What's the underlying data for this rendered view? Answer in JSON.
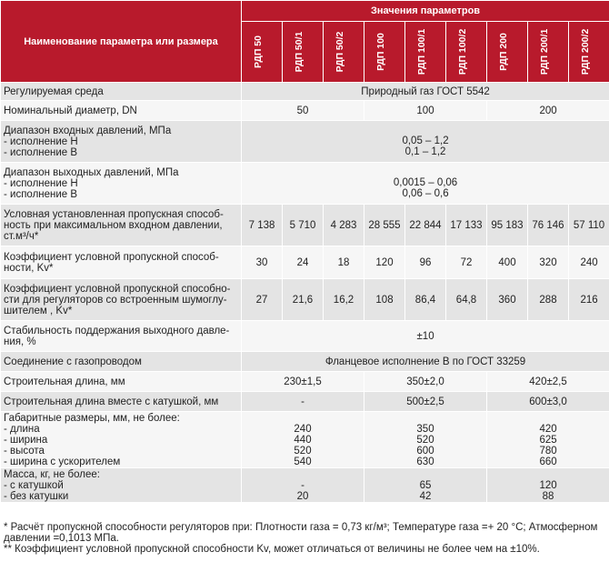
{
  "header": {
    "name_column": "Наименование параметра или размера",
    "values_group": "Значения параметров",
    "models": [
      "РДП 50",
      "РДП 50/1",
      "РДП 50/2",
      "РДП 100",
      "РДП 100/1",
      "РДП 100/2",
      "РДП 200",
      "РДП 200/1",
      "РДП 200/2"
    ]
  },
  "rows": {
    "medium": {
      "label": "Регулируемая среда",
      "value": "Природный газ ГОСТ 5542"
    },
    "dn": {
      "label": "Номинальный диаметр, DN",
      "values": [
        "50",
        "100",
        "200"
      ]
    },
    "inlet": {
      "label": [
        "Диапазон входных давлений, МПа",
        "- исполнение Н",
        "- исполнение В"
      ],
      "values": [
        "0,05 – 1,2",
        "0,1 – 1,2"
      ]
    },
    "outlet": {
      "label": [
        "Диапазон выходных давлений, МПа",
        "- исполнение Н",
        "- исполнение В"
      ],
      "values": [
        "0,0015 – 0,06",
        "0,06 – 0,6"
      ]
    },
    "capacity": {
      "label": [
        "Условная установленная пропускная способ-",
        "ность при максимальном входном давлении,",
        "ст.м³/ч*"
      ],
      "values": [
        "7 138",
        "5 710",
        "4 283",
        "28 555",
        "22 844",
        "17 133",
        "95 183",
        "76 146",
        "57 110"
      ]
    },
    "kv": {
      "label": [
        "Коэффициент условной пропускной способ-",
        "ности, Kv*"
      ],
      "values": [
        "30",
        "24",
        "18",
        "120",
        "96",
        "72",
        "400",
        "320",
        "240"
      ]
    },
    "kv_silencer": {
      "label": [
        "Коэффициент условной пропускной способно-",
        "сти для регуляторов со встроенным шумоглу-",
        "шителем , Kv*"
      ],
      "values": [
        "27",
        "21,6",
        "16,2",
        "108",
        "86,4",
        "64,8",
        "360",
        "288",
        "216"
      ]
    },
    "stability": {
      "label": [
        "Стабильность поддержания выходного давле-",
        "ния, %"
      ],
      "value": "±10"
    },
    "connection": {
      "label": "Соединение с газопроводом",
      "value": "Фланцевое  исполнение В по ГОСТ 33259"
    },
    "length": {
      "label": "Строительная  длина, мм",
      "values": [
        "230±1,5",
        "350±2,0",
        "420±2,5"
      ]
    },
    "length_coil": {
      "label": "Строительная длина вместе с катушкой, мм",
      "values": [
        "-",
        "500±2,5",
        "600±3,0"
      ]
    },
    "dimensions": {
      "label": [
        "Габаритные размеры, мм, не более:",
        "- длина",
        "- ширина",
        "- высота",
        "- ширина с ускорителем"
      ],
      "values": [
        [
          "240",
          "440",
          "520",
          "540"
        ],
        [
          "350",
          "520",
          "600",
          "630"
        ],
        [
          "420",
          "625",
          "780",
          "660"
        ]
      ]
    },
    "mass": {
      "label": [
        "Масса, кг, не более:",
        "- с катушкой",
        "- без катушки"
      ],
      "values": [
        [
          "-",
          "20"
        ],
        [
          "65",
          "42"
        ],
        [
          "120",
          "88"
        ]
      ]
    }
  },
  "notes": {
    "line1": "* Расчёт пропускной способности регуляторов при: Плотности газа = 0,73 кг/м³; Температуре газа =+ 20 °С; Атмосферном",
    "line2": "давлении =0,1013 МПа.",
    "line3": "** Коэффициент условной пропускной способности Kv, может отличаться от величины не более чем на ±10%."
  },
  "colors": {
    "header_red": "#b81a2c",
    "row_dark": "#e4e4e4",
    "row_light": "#f6f6f6"
  }
}
